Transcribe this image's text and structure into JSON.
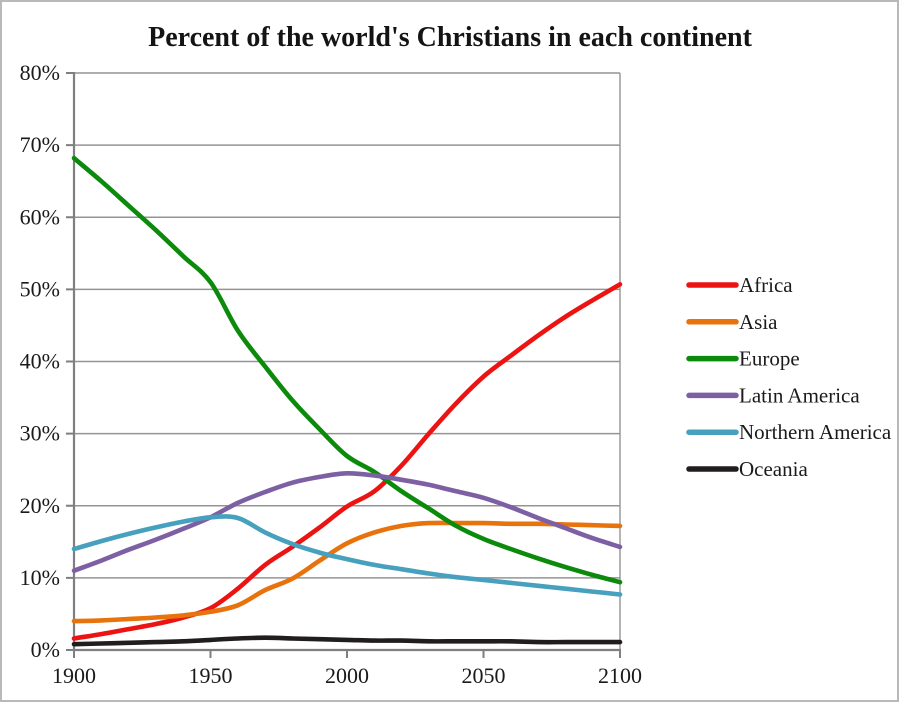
{
  "chart_data": {
    "type": "line",
    "title": "Percent of the world's Christians in each continent",
    "x": [
      1900,
      1910,
      1920,
      1930,
      1940,
      1950,
      1960,
      1970,
      1980,
      1990,
      2000,
      2010,
      2020,
      2030,
      2040,
      2050,
      2060,
      2070,
      2080,
      2090,
      2100
    ],
    "series": [
      {
        "name": "Africa",
        "color": "#ec1313",
        "values": [
          1.6,
          2.2,
          2.9,
          3.6,
          4.5,
          5.8,
          8.5,
          11.8,
          14.3,
          17.0,
          19.9,
          22.0,
          25.6,
          30.0,
          34.2,
          37.9,
          40.8,
          43.6,
          46.2,
          48.5,
          50.7
        ]
      },
      {
        "name": "Asia",
        "color": "#e8720c",
        "values": [
          4.0,
          4.1,
          4.3,
          4.5,
          4.8,
          5.3,
          6.2,
          8.3,
          9.9,
          12.4,
          14.8,
          16.3,
          17.2,
          17.6,
          17.6,
          17.6,
          17.5,
          17.5,
          17.4,
          17.3,
          17.2
        ]
      },
      {
        "name": "Europe",
        "color": "#0b8a0b",
        "values": [
          68.2,
          65.0,
          61.6,
          58.2,
          54.6,
          51.0,
          44.3,
          39.3,
          34.6,
          30.6,
          26.9,
          24.7,
          22.0,
          19.6,
          17.2,
          15.4,
          14.0,
          12.7,
          11.5,
          10.4,
          9.4
        ]
      },
      {
        "name": "Latin America",
        "color": "#7d60a3",
        "values": [
          11.0,
          12.4,
          13.9,
          15.3,
          16.8,
          18.4,
          20.4,
          21.9,
          23.2,
          24.0,
          24.5,
          24.2,
          23.6,
          22.9,
          22.0,
          21.1,
          19.8,
          18.3,
          16.9,
          15.5,
          14.3
        ]
      },
      {
        "name": "Northern America",
        "color": "#47a0bd",
        "values": [
          14.0,
          15.1,
          16.1,
          17.0,
          17.8,
          18.4,
          18.3,
          16.3,
          14.7,
          13.5,
          12.6,
          11.8,
          11.2,
          10.6,
          10.1,
          9.7,
          9.3,
          8.9,
          8.5,
          8.1,
          7.7
        ]
      },
      {
        "name": "Oceania",
        "color": "#211c1d",
        "values": [
          0.8,
          0.9,
          1.0,
          1.1,
          1.2,
          1.4,
          1.6,
          1.7,
          1.6,
          1.5,
          1.4,
          1.3,
          1.3,
          1.2,
          1.2,
          1.2,
          1.2,
          1.1,
          1.1,
          1.1,
          1.1
        ]
      }
    ],
    "xlim": [
      1900,
      2100
    ],
    "ylim": [
      0,
      80
    ],
    "x_ticks": [
      1900,
      1950,
      2000,
      2050,
      2100
    ],
    "x_tick_labels": [
      "1900",
      "1950",
      "2000",
      "2050",
      "2100"
    ],
    "y_ticks": [
      0,
      10,
      20,
      30,
      40,
      50,
      60,
      70,
      80
    ],
    "y_tick_labels": [
      "0%",
      "10%",
      "20%",
      "30%",
      "40%",
      "50%",
      "60%",
      "70%",
      "80%"
    ],
    "grid": "horizontal",
    "legend_position": "right",
    "xlabel": "",
    "ylabel": ""
  },
  "colors": {
    "background": "#ffffff",
    "gridline": "#949494",
    "axis": "#7f7f7f",
    "frame_border": "#b9b9b9",
    "text": "#1a1a1a"
  }
}
